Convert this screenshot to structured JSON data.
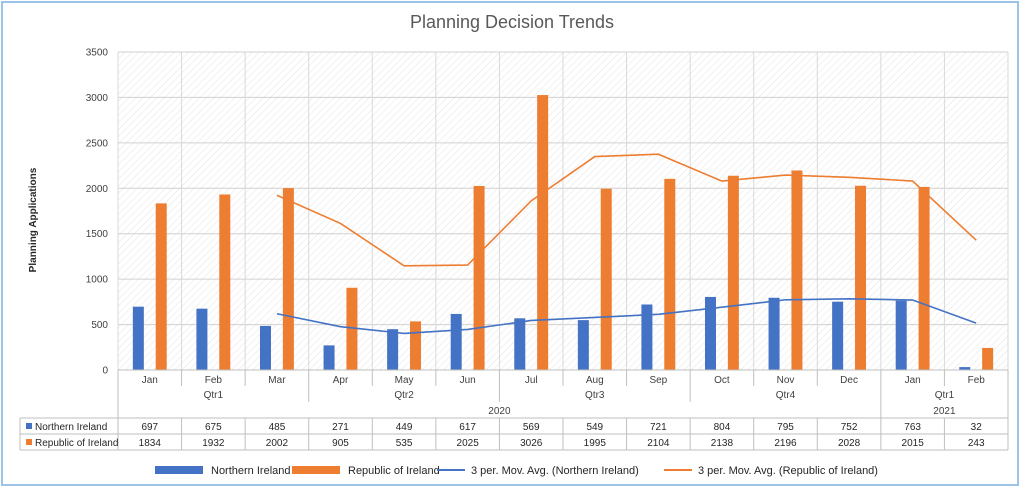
{
  "chart_data": {
    "type": "bar",
    "title": "Planning Decision Trends",
    "ylabel": "Planning Applications",
    "xlabel": "",
    "ylim": [
      0,
      3500
    ],
    "yticks": [
      0,
      500,
      1000,
      1500,
      2000,
      2500,
      3000,
      3500
    ],
    "grid": true,
    "legend_position": "bottom",
    "categories": [
      "Jan",
      "Feb",
      "Mar",
      "Apr",
      "May",
      "Jun",
      "Jul",
      "Aug",
      "Sep",
      "Oct",
      "Nov",
      "Dec",
      "Jan",
      "Feb"
    ],
    "quarters": [
      {
        "label": "Qtr1",
        "start": 0,
        "end": 2
      },
      {
        "label": "Qtr2",
        "start": 3,
        "end": 5
      },
      {
        "label": "Qtr3",
        "start": 6,
        "end": 8
      },
      {
        "label": "Qtr4",
        "start": 9,
        "end": 11
      },
      {
        "label": "Qtr1",
        "start": 12,
        "end": 13
      }
    ],
    "years": [
      {
        "label": "2020",
        "start": 0,
        "end": 11
      },
      {
        "label": "2021",
        "start": 12,
        "end": 13
      }
    ],
    "series": [
      {
        "name": "Northern Ireland",
        "type": "bar",
        "color": "#4472c4",
        "values": [
          697,
          675,
          485,
          271,
          449,
          617,
          569,
          549,
          721,
          804,
          795,
          752,
          763,
          32
        ]
      },
      {
        "name": "Republic of Ireland",
        "type": "bar",
        "color": "#ed7d31",
        "values": [
          1834,
          1932,
          2002,
          905,
          535,
          2025,
          3026,
          1995,
          2104,
          2138,
          2196,
          2028,
          2015,
          243
        ]
      },
      {
        "name": "3 per. Mov. Avg. (Northern Ireland)",
        "type": "line",
        "color": "#4472c4",
        "values": [
          null,
          null,
          619,
          477,
          402,
          446,
          545,
          578,
          613,
          691,
          773,
          784,
          770,
          516
        ]
      },
      {
        "name": "3 per. Mov. Avg. (Republic of Ireland)",
        "type": "line",
        "color": "#ed7d31",
        "values": [
          null,
          null,
          1923,
          1613,
          1147,
          1155,
          1862,
          2349,
          2375,
          2079,
          2146,
          2121,
          2080,
          1429
        ]
      }
    ]
  }
}
